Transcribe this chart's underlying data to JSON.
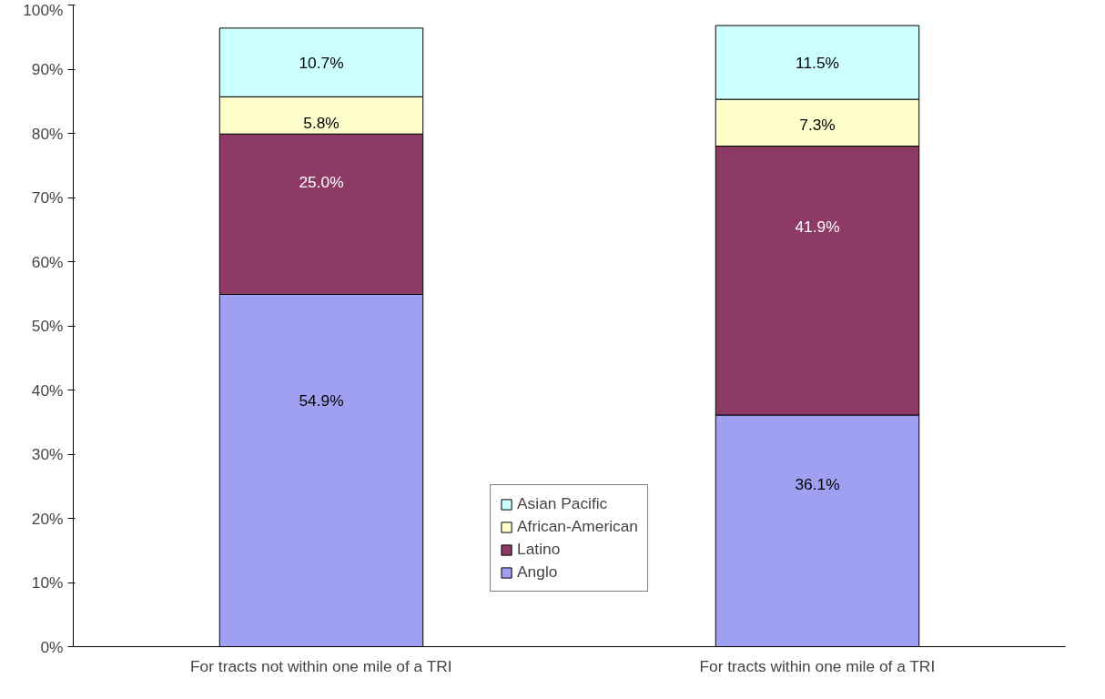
{
  "chart_data": {
    "type": "bar",
    "stacked": true,
    "categories": [
      "For tracts not within one mile of a TRI",
      "For tracts within one mile of a TRI"
    ],
    "series": [
      {
        "name": "Anglo",
        "color": "#9fa0f2",
        "values": [
          54.9,
          36.1
        ],
        "value_labels": [
          "54.9%",
          "36.1%"
        ]
      },
      {
        "name": "Latino",
        "color": "#8e3a66",
        "values": [
          25.0,
          41.9
        ],
        "value_labels": [
          "25.0%",
          "41.9%"
        ]
      },
      {
        "name": "African-American",
        "color": "#ffffcc",
        "values": [
          5.8,
          7.3
        ],
        "value_labels": [
          "5.8%",
          "7.3%"
        ]
      },
      {
        "name": "Asian Pacific",
        "color": "#ccffff",
        "values": [
          10.7,
          11.5
        ],
        "value_labels": [
          "10.7%",
          "11.5%"
        ]
      }
    ],
    "ylim": [
      0,
      100
    ],
    "yticks": [
      {
        "value": 0,
        "label": "0%"
      },
      {
        "value": 10,
        "label": "10%"
      },
      {
        "value": 20,
        "label": "20%"
      },
      {
        "value": 30,
        "label": "30%"
      },
      {
        "value": 40,
        "label": "40%"
      },
      {
        "value": 50,
        "label": "50%"
      },
      {
        "value": 60,
        "label": "60%"
      },
      {
        "value": 70,
        "label": "70%"
      },
      {
        "value": 80,
        "label": "80%"
      },
      {
        "value": 90,
        "label": "90%"
      },
      {
        "value": 100,
        "label": "100%"
      }
    ],
    "grid": false,
    "legend": "bottom"
  }
}
